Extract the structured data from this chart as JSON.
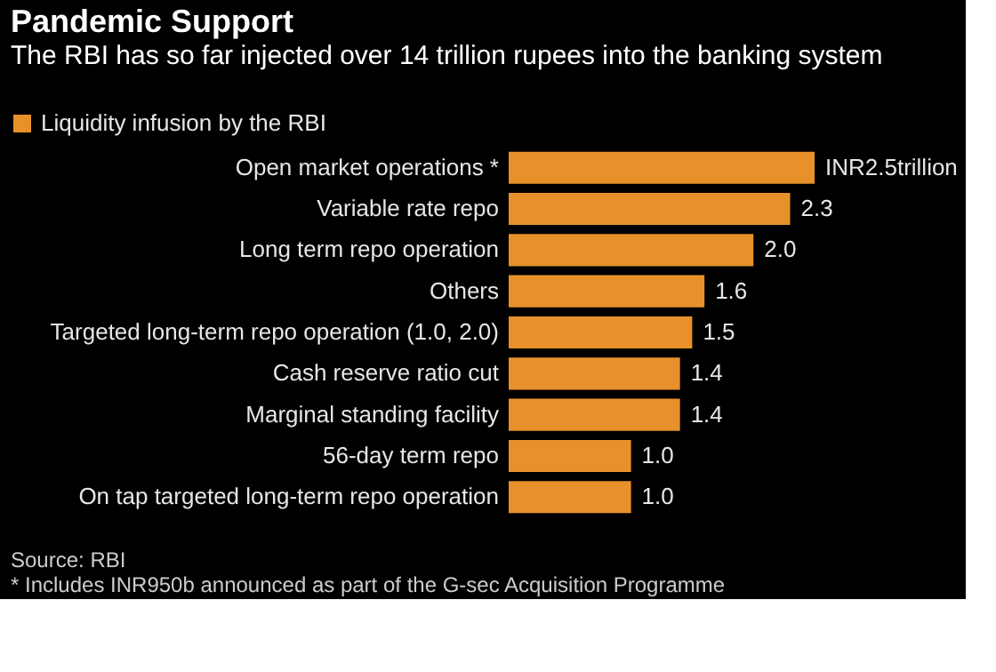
{
  "chart_data": {
    "type": "bar",
    "orientation": "horizontal",
    "title": "Pandemic Support",
    "subtitle": "The RBI has so far injected over 14 trillion rupees into the banking system",
    "categories": [
      "Open market operations *",
      "Variable rate repo",
      "Long term repo operation",
      "Others",
      "Targeted long-term repo operation (1.0, 2.0)",
      "Cash reserve ratio cut",
      "Marginal standing facility",
      "56-day term repo",
      "On tap targeted long-term repo operation"
    ],
    "series": [
      {
        "name": "Liquidity infusion by the RBI",
        "color": "#e8912a",
        "values": [
          2.5,
          2.3,
          2.0,
          1.6,
          1.5,
          1.4,
          1.4,
          1.0,
          1.0
        ],
        "value_labels": [
          "INR2.5trillion",
          "2.3",
          "2.0",
          "1.6",
          "1.5",
          "1.4",
          "1.4",
          "1.0",
          "1.0"
        ]
      }
    ],
    "legend": "top left",
    "grid": false,
    "annotations": [
      "Source: RBI",
      "* Includes INR950b announced as part of the G-sec Acquisition Programme"
    ]
  }
}
